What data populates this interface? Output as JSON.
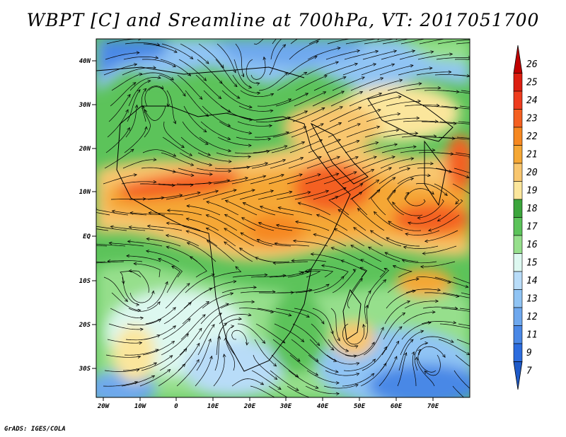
{
  "title": "WBPT [C] and Sreamline at 700hPa, VT: 2017051700",
  "credit": "GrADS: IGES/COLA",
  "map": {
    "lat_labels": [
      "40N",
      "30N",
      "20N",
      "10N",
      "EQ",
      "10S",
      "20S",
      "30S"
    ],
    "lon_labels": [
      "20W",
      "10W",
      "0",
      "10E",
      "20E",
      "30E",
      "40E",
      "50E",
      "60E",
      "70E"
    ]
  },
  "colorbar": {
    "labels": [
      "26",
      "25",
      "24",
      "23",
      "22",
      "21",
      "20",
      "19",
      "18",
      "17",
      "16",
      "15",
      "14",
      "13",
      "12",
      "11",
      "9",
      "7"
    ],
    "colors": [
      "#c00000",
      "#dc1e10",
      "#ee3c1e",
      "#f46020",
      "#f68820",
      "#f5a734",
      "#f8c66e",
      "#fbe69c",
      "#3ca53c",
      "#5cc35a",
      "#96df8c",
      "#ddf8f0",
      "#b8dcf8",
      "#90c4f4",
      "#6ea8ee",
      "#4a88e6",
      "#2c6cde",
      "#1e5ac8"
    ]
  },
  "legend_colors": {
    "warm_peak": "#c00000",
    "cold_tail": "#1e5ac8"
  }
}
